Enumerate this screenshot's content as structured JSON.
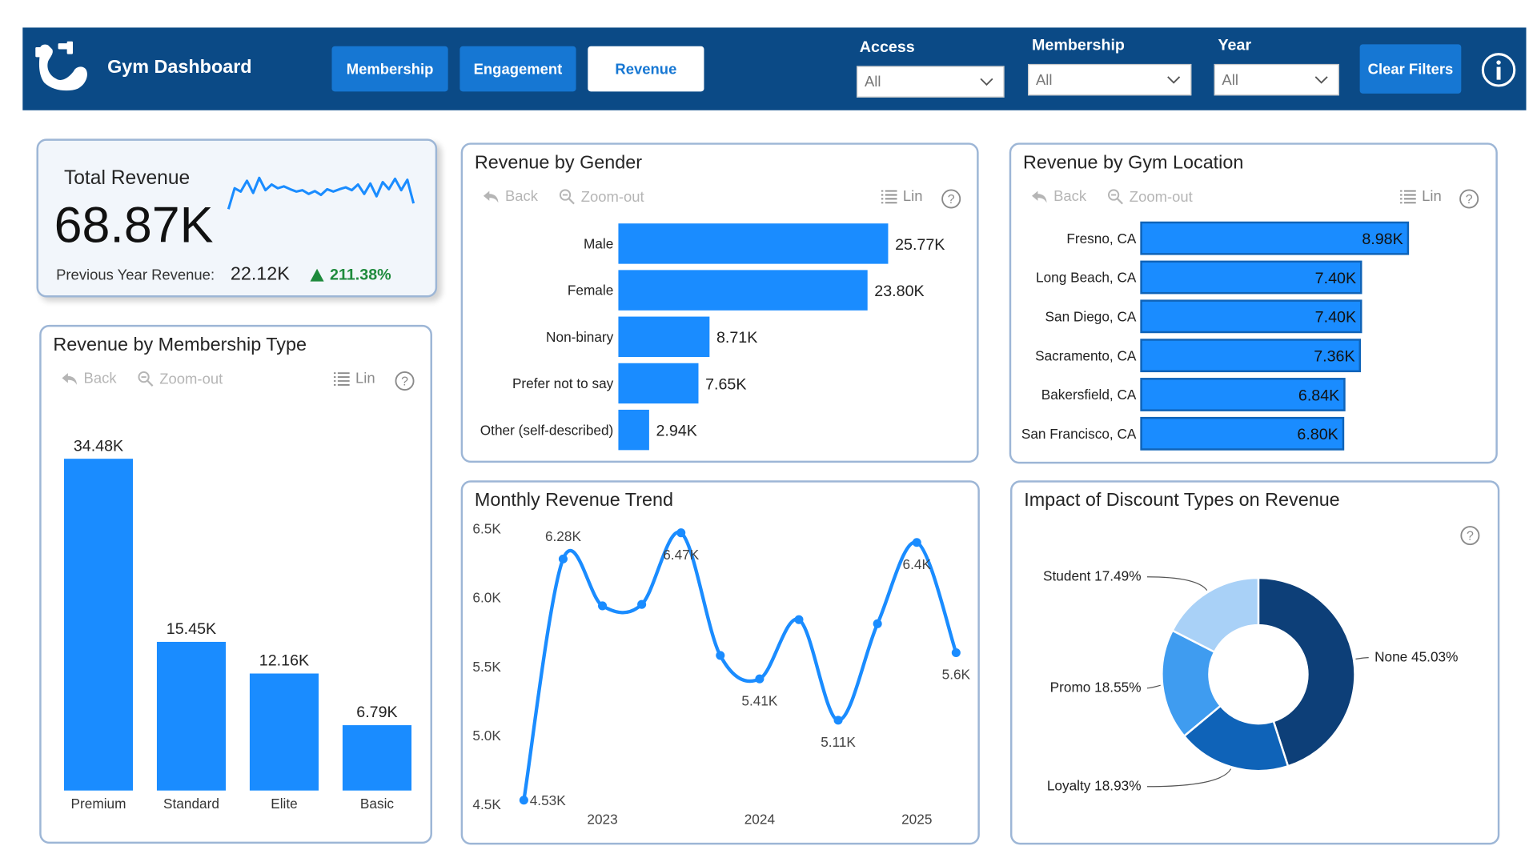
{
  "header": {
    "title": "Gym Dashboard",
    "tabs": [
      {
        "label": "Membership",
        "active": false
      },
      {
        "label": "Engagement",
        "active": false
      },
      {
        "label": "Revenue",
        "active": true
      }
    ],
    "filters": [
      {
        "label": "Access",
        "value": "All"
      },
      {
        "label": "Membership",
        "value": "All"
      },
      {
        "label": "Year",
        "value": "All"
      }
    ],
    "clear_filters_label": "Clear Filters",
    "icons": {
      "logo": "flexed-arm-icon",
      "info": "info-icon",
      "dropdown": "chevron-down-icon"
    }
  },
  "toolbar": {
    "back_label": "Back",
    "zoom_label": "Zoom-out",
    "lin_label": "Lin"
  },
  "kpi": {
    "title": "Total Revenue",
    "value": "68.87K",
    "prev_label": "Previous Year Revenue:",
    "prev_value": "22.12K",
    "change": "211.38%",
    "change_color": "#1e8a3c",
    "sparkline": [
      0.18,
      0.62,
      0.55,
      0.78,
      0.52,
      0.84,
      0.58,
      0.7,
      0.62,
      0.66,
      0.6,
      0.55,
      0.58,
      0.5,
      0.56,
      0.48,
      0.6,
      0.55,
      0.6,
      0.64,
      0.58,
      0.7,
      0.5,
      0.72,
      0.45,
      0.75,
      0.6,
      0.82,
      0.58,
      0.8,
      0.3
    ]
  },
  "colors": {
    "accent": "#1a8cff",
    "header_bg": "#0b4a86",
    "nav_btn": "#1677d3",
    "donut": [
      "#0d3f78",
      "#0f63b8",
      "#3f9cf0",
      "#a9d1f7"
    ]
  },
  "chart_data": [
    {
      "id": "membership",
      "type": "bar",
      "title": "Revenue by Membership Type",
      "categories": [
        "Premium",
        "Standard",
        "Elite",
        "Basic"
      ],
      "values": [
        34.48,
        15.45,
        12.16,
        6.79
      ],
      "labels": [
        "34.48K",
        "15.45K",
        "12.16K",
        "6.79K"
      ]
    },
    {
      "id": "gender",
      "type": "bar",
      "orientation": "horizontal",
      "title": "Revenue by Gender",
      "categories": [
        "Male",
        "Female",
        "Non-binary",
        "Prefer not to say",
        "Other (self-described)"
      ],
      "values": [
        25.77,
        23.8,
        8.71,
        7.65,
        2.94
      ],
      "labels": [
        "25.77K",
        "23.80K",
        "8.71K",
        "7.65K",
        "2.94K"
      ]
    },
    {
      "id": "location",
      "type": "bar",
      "orientation": "horizontal",
      "title": "Revenue by Gym Location",
      "categories": [
        "Fresno, CA",
        "Long Beach, CA",
        "San Diego, CA",
        "Sacramento, CA",
        "Bakersfield, CA",
        "San Francisco, CA"
      ],
      "values": [
        8.98,
        7.4,
        7.4,
        7.36,
        6.84,
        6.8
      ],
      "labels": [
        "8.98K",
        "7.40K",
        "7.40K",
        "7.36K",
        "6.84K",
        "6.80K"
      ]
    },
    {
      "id": "trend",
      "type": "line",
      "title": "Monthly Revenue Trend",
      "ylim": [
        4.5,
        6.5
      ],
      "yticks": [
        "4.5K",
        "5.0K",
        "5.5K",
        "6.0K",
        "6.5K"
      ],
      "ytick_values": [
        4.5,
        5.0,
        5.5,
        6.0,
        6.5
      ],
      "xticks": [
        "2023",
        "2024",
        "2025"
      ],
      "xtick_positions": [
        2,
        6,
        10
      ],
      "x": [
        0,
        1,
        2,
        3,
        4,
        5,
        6,
        7,
        8,
        9,
        10,
        11
      ],
      "y": [
        4.53,
        6.28,
        5.94,
        5.95,
        6.47,
        5.58,
        5.41,
        5.84,
        5.11,
        5.81,
        6.4,
        5.6
      ],
      "point_labels": [
        {
          "index": 0,
          "text": "4.53K",
          "pos": "right"
        },
        {
          "index": 1,
          "text": "6.28K",
          "pos": "above"
        },
        {
          "index": 4,
          "text": "6.47K",
          "pos": "below"
        },
        {
          "index": 6,
          "text": "5.41K",
          "pos": "below"
        },
        {
          "index": 8,
          "text": "5.11K",
          "pos": "below"
        },
        {
          "index": 10,
          "text": "6.4K",
          "pos": "below"
        },
        {
          "index": 11,
          "text": "5.6K",
          "pos": "below"
        }
      ]
    },
    {
      "id": "discount",
      "type": "pie",
      "title": "Impact of Discount Types on Revenue",
      "labels": [
        "None",
        "Loyalty",
        "Promo",
        "Student"
      ],
      "values": [
        45.03,
        18.93,
        18.55,
        17.49
      ],
      "display": [
        "None 45.03%",
        "Loyalty 18.93%",
        "Promo 18.55%",
        "Student 17.49%"
      ]
    }
  ]
}
